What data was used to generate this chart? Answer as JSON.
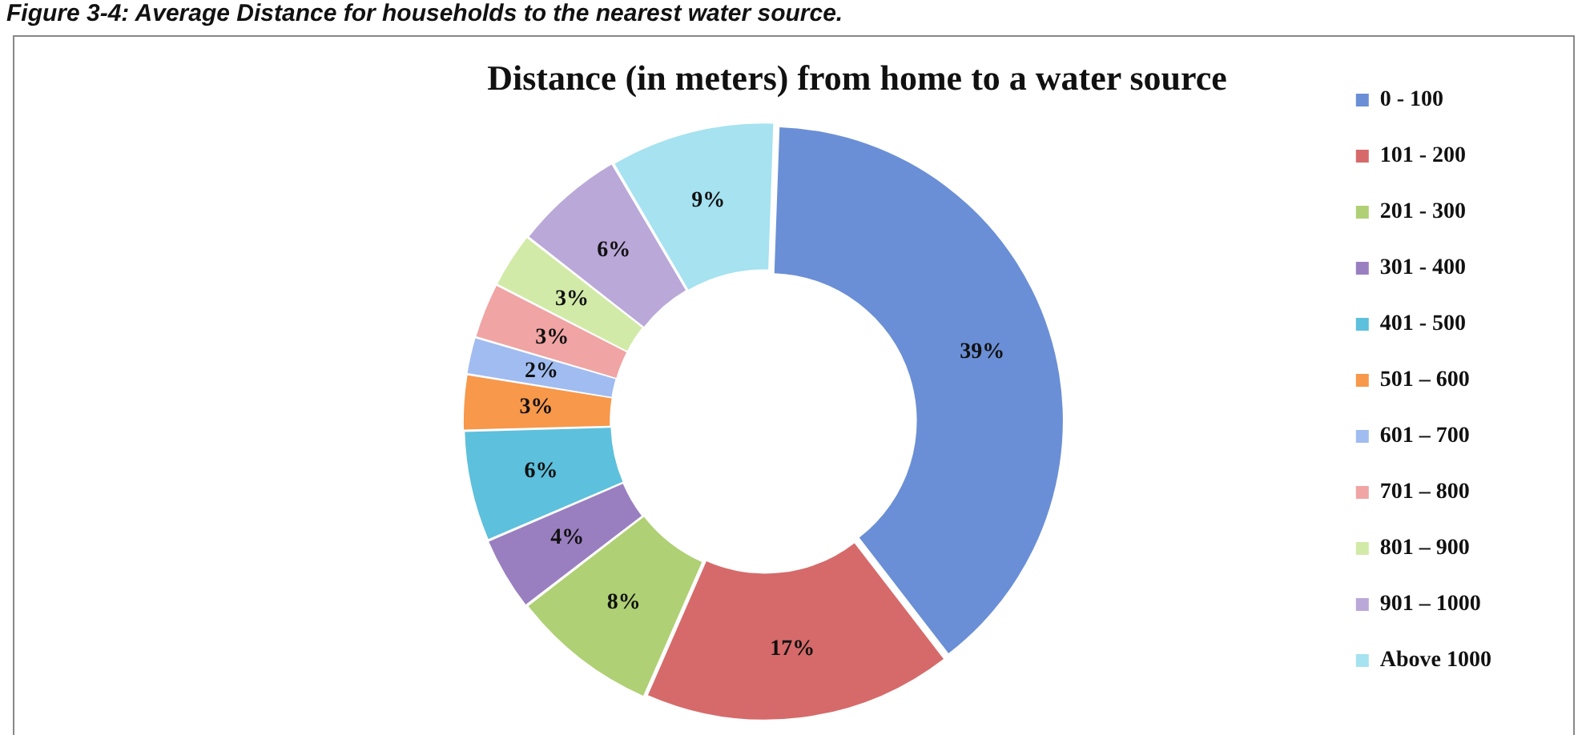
{
  "chart_data": {
    "type": "donut",
    "title": "Distance (in meters) from home to a water source",
    "annotations": [
      "Figure 3-4: Average Distance for households to the nearest water source."
    ],
    "categories": [
      "0 - 100",
      "101 - 200",
      "201 - 300",
      "301 - 400",
      "401 - 500",
      "501 – 600",
      "601 – 700",
      "701 – 800",
      "801 – 900",
      "901 – 1000",
      "Above 1000"
    ],
    "values": [
      39,
      17,
      8,
      4,
      6,
      3,
      2,
      3,
      3,
      6,
      9
    ],
    "value_labels": [
      "39%",
      "17%",
      "8%",
      "4%",
      "6%",
      "3%",
      "2%",
      "3%",
      "3%",
      "6%",
      "9%"
    ],
    "colors": [
      "#6a8fd6",
      "#d66a6a",
      "#afd074",
      "#9a7fc0",
      "#5dc0dc",
      "#f7984a",
      "#a0bcf0",
      "#f0a4a4",
      "#d2eaa8",
      "#baa8d8",
      "#a6e2f0"
    ],
    "legend": "right"
  }
}
